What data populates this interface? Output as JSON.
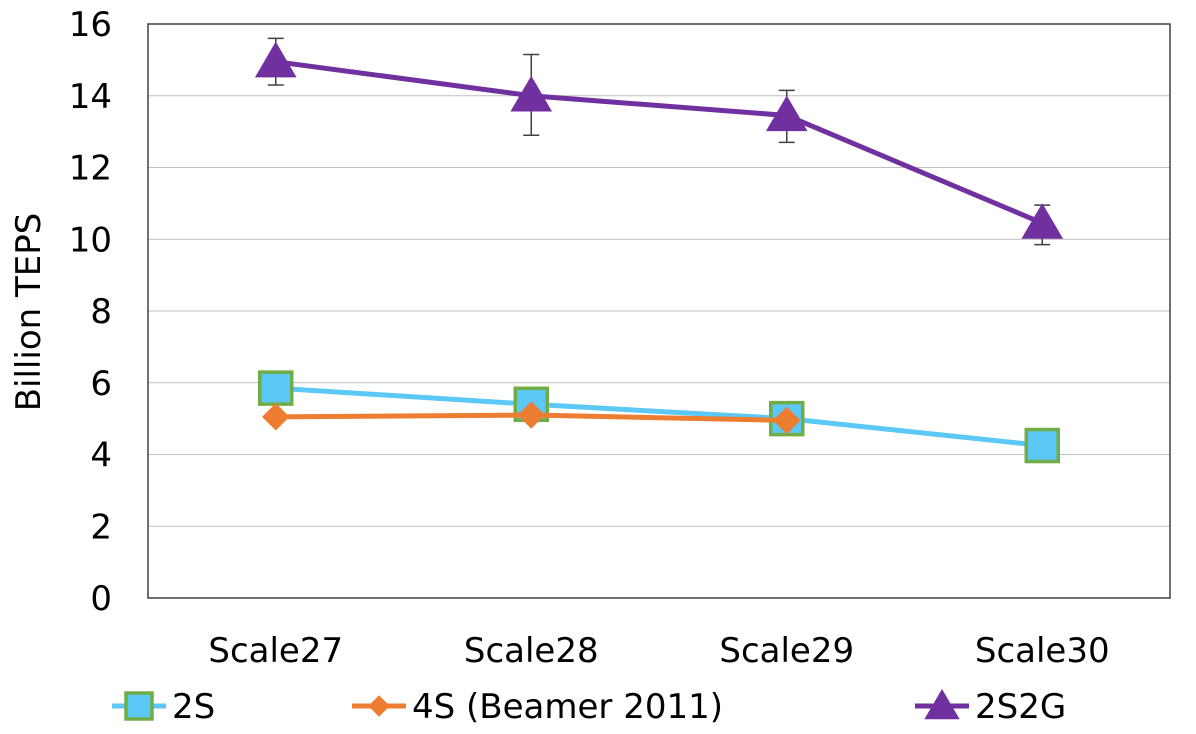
{
  "chart_data": {
    "type": "line",
    "title": "",
    "xlabel": "",
    "ylabel": "Billion  TEPS",
    "categories": [
      "Scale27",
      "Scale28",
      "Scale29",
      "Scale30"
    ],
    "ylim": [
      0,
      16
    ],
    "yticks": [
      0,
      2,
      4,
      6,
      8,
      10,
      12,
      14,
      16
    ],
    "grid": "horizontal",
    "legend_position": "bottom",
    "series": [
      {
        "name": "2S",
        "values": [
          5.85,
          5.4,
          5.0,
          4.25
        ],
        "color": "#5BC8F5",
        "marker": "square",
        "marker_fill": "#5BC8F5",
        "marker_edge": "#70AD47"
      },
      {
        "name": "4S (Beamer 2011)",
        "values": [
          5.05,
          5.1,
          4.95,
          null
        ],
        "color": "#ED7D31",
        "marker": "diamond",
        "marker_fill": "#ED7D31",
        "marker_edge": "#ED7D31"
      },
      {
        "name": "2S2G",
        "values": [
          14.95,
          14.0,
          13.45,
          10.45
        ],
        "error_low": [
          14.3,
          12.9,
          12.7,
          9.85
        ],
        "error_high": [
          15.6,
          15.15,
          14.15,
          10.95
        ],
        "color": "#7030A0",
        "marker": "triangle",
        "marker_fill": "#7030A0",
        "marker_edge": "#7030A0"
      }
    ]
  }
}
